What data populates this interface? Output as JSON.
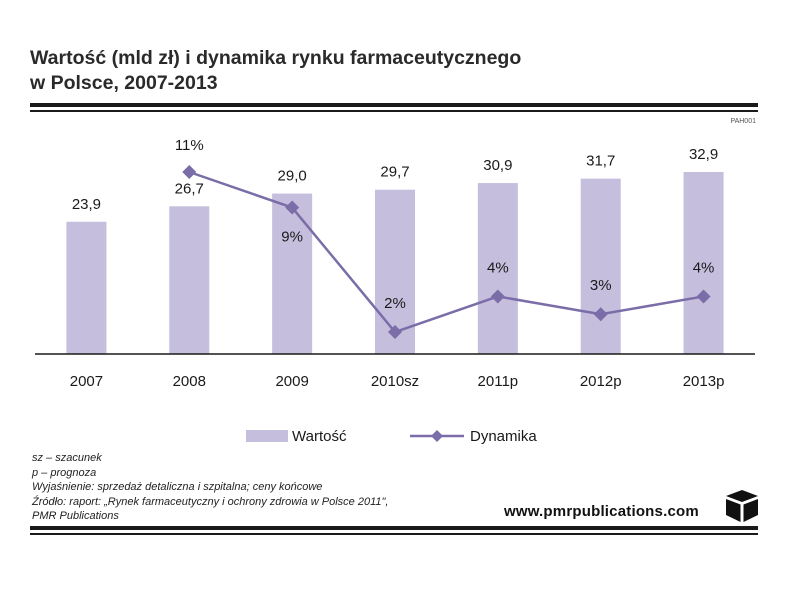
{
  "header": {
    "title_line1": "Wartość (mld zł) i dynamika rynku farmaceutycznego",
    "title_line2": "w Polsce, 2007-2013",
    "code": "PAH001"
  },
  "legend": {
    "bar_label": "Wartość",
    "line_label": "Dynamika"
  },
  "notes": {
    "line1": "sz – szacunek",
    "line2": "p – prognoza",
    "line3": "Wyjaśnienie: sprzedaż detaliczna i szpitalna; ceny końcowe",
    "line4": "Źródło: raport: „Rynek farmaceutyczny i ochrony zdrowia w Polsce 2011\",",
    "line5": "PMR Publications"
  },
  "footer": {
    "site": "www.pmrpublications.com",
    "logo_icon": "cube-logo-icon"
  },
  "colors": {
    "bar": "#c5bedd",
    "line": "#7b6da8",
    "rules": "#1a1a1a"
  },
  "chart_data": {
    "type": "bar",
    "categories": [
      "2007",
      "2008",
      "2009",
      "2010sz",
      "2011p",
      "2012p",
      "2013p"
    ],
    "series": [
      {
        "name": "Wartość",
        "type": "bar",
        "values": [
          23.9,
          26.7,
          29.0,
          29.7,
          30.9,
          31.7,
          32.9
        ],
        "labels": [
          "23,9",
          "26,7",
          "29,0",
          "29,7",
          "30,9",
          "31,7",
          "32,9"
        ]
      },
      {
        "name": "Dynamika",
        "type": "line",
        "values": [
          null,
          11,
          9,
          2,
          4,
          3,
          4
        ],
        "labels": [
          "",
          "11%",
          "9%",
          "2%",
          "4%",
          "3%",
          "4%"
        ]
      }
    ],
    "legend_position": "bottom",
    "grid": false
  }
}
